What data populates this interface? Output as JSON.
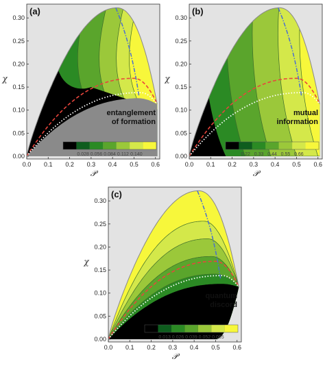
{
  "chart_data": [
    {
      "type": "contour",
      "panel": "(a)",
      "annotation": [
        "entanglement",
        "of formation"
      ],
      "xlabel": "𝒫",
      "ylabel": "χ",
      "xlim": [
        0,
        0.62
      ],
      "ylim": [
        0,
        0.33
      ],
      "xticks": [
        "0.0",
        "0.1",
        "0.2",
        "0.3",
        "0.4",
        "0.5",
        "0.6"
      ],
      "yticks": [
        "0.00",
        "0.05",
        "0.10",
        "0.15",
        "0.20",
        "0.25",
        "0.30"
      ],
      "colorbar": {
        "colors": [
          "#000000",
          "#0e5d1e",
          "#2b8a24",
          "#5aa52c",
          "#9bc83a",
          "#d4e84a",
          "#f7f73b"
        ],
        "labels": [
          "0.028",
          "0.056",
          "0.084",
          "0.112",
          "0.140"
        ]
      }
    },
    {
      "type": "contour",
      "panel": "(b)",
      "annotation": [
        "mutual",
        "information"
      ],
      "xlabel": "𝒫",
      "ylabel": "χ",
      "xlim": [
        0,
        0.62
      ],
      "ylim": [
        0,
        0.33
      ],
      "xticks": [
        "0.0",
        "0.1",
        "0.2",
        "0.3",
        "0.4",
        "0.5",
        "0.6"
      ],
      "yticks": [
        "0.00",
        "0.05",
        "0.10",
        "0.15",
        "0.20",
        "0.25",
        "0.30"
      ],
      "colorbar": {
        "colors": [
          "#000000",
          "#0e5d1e",
          "#2b8a24",
          "#5aa52c",
          "#9bc83a",
          "#d4e84a",
          "#f7f73b"
        ],
        "labels": [
          "0.22",
          "0.33",
          "0.44",
          "0.55",
          "0.66"
        ]
      }
    },
    {
      "type": "contour",
      "panel": "(c)",
      "annotation": [
        "quantum",
        "discord"
      ],
      "xlabel": "𝒫",
      "ylabel": "χ",
      "xlim": [
        0,
        0.62
      ],
      "ylim": [
        0,
        0.33
      ],
      "xticks": [
        "0.0",
        "0.1",
        "0.2",
        "0.3",
        "0.4",
        "0.5",
        "0.6"
      ],
      "yticks": [
        "0.00",
        "0.05",
        "0.10",
        "0.15",
        "0.20",
        "0.25",
        "0.30"
      ],
      "colorbar": {
        "colors": [
          "#000000",
          "#0e5d1e",
          "#2b8a24",
          "#5aa52c",
          "#9bc83a",
          "#d4e84a",
          "#f7f73b"
        ],
        "labels": [
          "0.013",
          "0.026",
          "0.039",
          "0.052",
          "0.065"
        ]
      }
    }
  ],
  "curves": {
    "boundary_peak": [
      0.42,
      0.322
    ],
    "boundary_end": [
      0.608,
      0.113
    ],
    "red_dashed_peak": [
      0.5,
      0.169
    ],
    "white_dotted_peak": [
      0.53,
      0.138
    ],
    "blue_dashdot": [
      [
        0.415,
        0.322
      ],
      [
        0.523,
        0.131
      ]
    ],
    "colors": {
      "red": "#e8453c",
      "white": "#ffffff",
      "blue": "#4a6fd0",
      "boundary": "#888888",
      "background": "#e3e3e3"
    }
  }
}
